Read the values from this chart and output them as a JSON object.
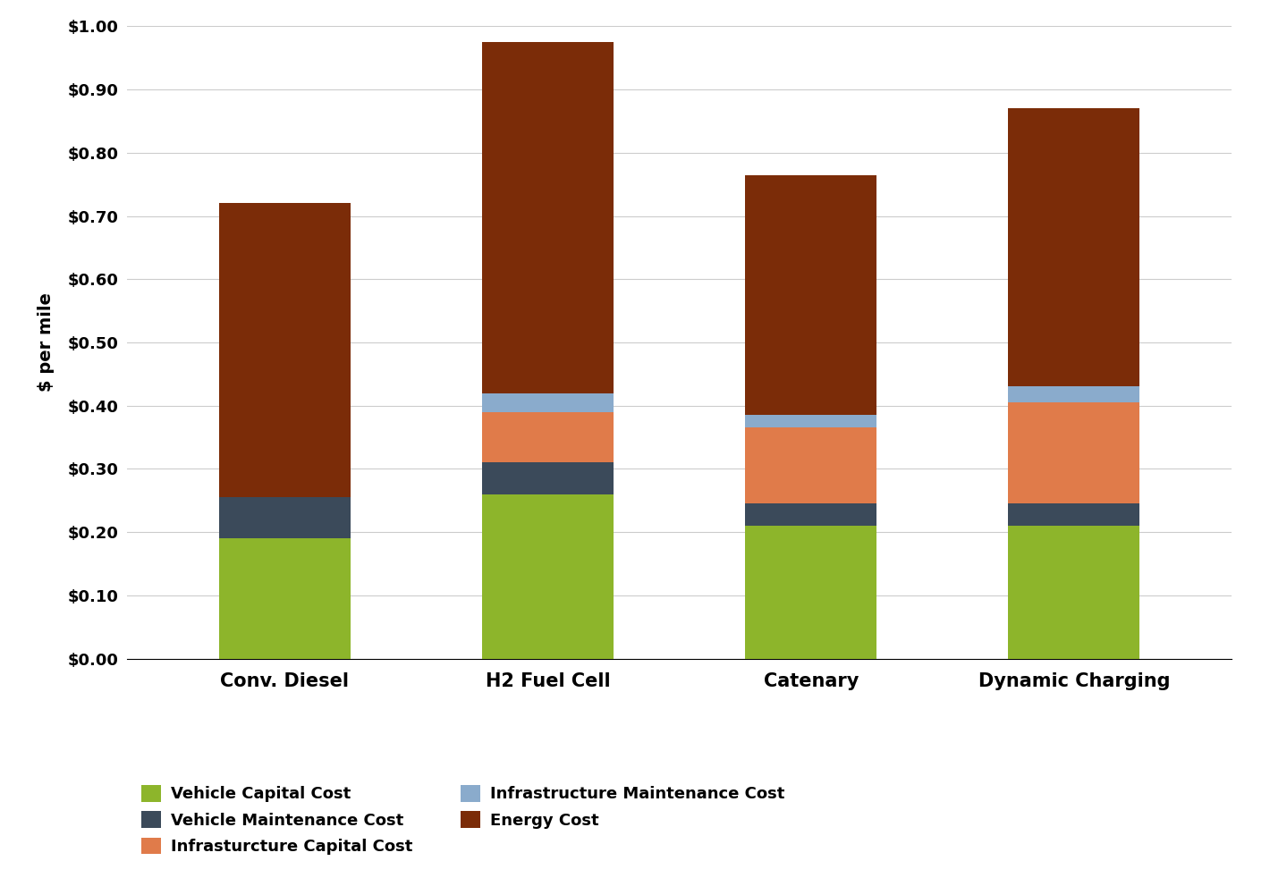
{
  "categories": [
    "Conv. Diesel",
    "H2 Fuel Cell",
    "Catenary",
    "Dynamic Charging"
  ],
  "vehicle_capital": [
    0.19,
    0.26,
    0.21,
    0.21
  ],
  "vehicle_maintenance": [
    0.065,
    0.05,
    0.035,
    0.035
  ],
  "infra_capital": [
    0.0,
    0.08,
    0.12,
    0.16
  ],
  "infra_maintenance": [
    0.0,
    0.03,
    0.02,
    0.025
  ],
  "energy": [
    0.465,
    0.555,
    0.38,
    0.44
  ],
  "colors": {
    "vehicle_capital": "#8DB52B",
    "vehicle_maintenance": "#3B4A5A",
    "infra_capital": "#E07B4A",
    "infra_maintenance": "#8AABCC",
    "energy": "#7B2C08"
  },
  "ylabel": "$ per mile",
  "ylim": [
    0.0,
    1.0
  ],
  "ytick_labels": [
    "$0.00",
    "$0.10",
    "$0.20",
    "$0.30",
    "$0.40",
    "$0.50",
    "$0.60",
    "$0.70",
    "$0.80",
    "$0.90",
    "$1.00"
  ],
  "ytick_values": [
    0.0,
    0.1,
    0.2,
    0.3,
    0.4,
    0.5,
    0.6,
    0.7,
    0.8,
    0.9,
    1.0
  ],
  "legend_col1_keys": [
    "vehicle_capital",
    "infra_capital",
    "energy"
  ],
  "legend_col1_labels": [
    "Vehicle Capital Cost",
    "Infrasturcture Capital Cost",
    "Energy Cost"
  ],
  "legend_col2_keys": [
    "vehicle_maintenance",
    "infra_maintenance"
  ],
  "legend_col2_labels": [
    "Vehicle Maintenance Cost",
    "Infrastructure Maintenance Cost"
  ],
  "bar_width": 0.5,
  "figure_bg": "#FFFFFF",
  "axes_bg": "#FFFFFF"
}
